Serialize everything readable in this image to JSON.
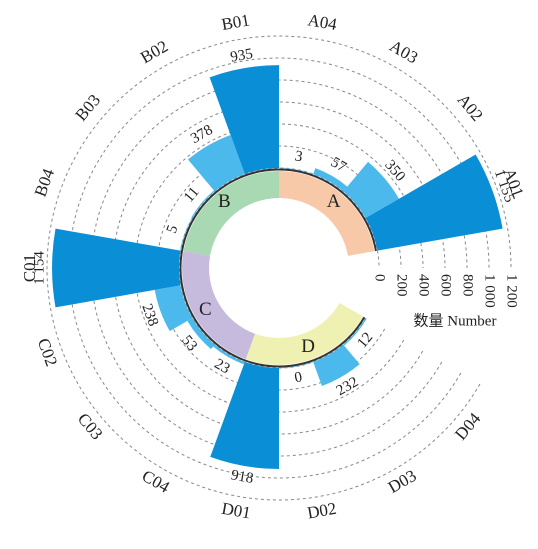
{
  "chart_data": {
    "type": "radial_bar",
    "categories": [
      "A04",
      "A03",
      "A02",
      "A01",
      "D04",
      "D03",
      "D02",
      "D01",
      "C04",
      "C03",
      "C02",
      "C01",
      "B04",
      "B03",
      "B02",
      "B01"
    ],
    "values": [
      3,
      57,
      350,
      1155,
      12,
      232,
      0,
      918,
      23,
      53,
      238,
      1154,
      5,
      11,
      378,
      935
    ],
    "value_labels": [
      "3",
      "57",
      "350",
      "1 155",
      "12",
      "232",
      "0",
      "918",
      "23",
      "53",
      "238",
      "1 154",
      "5",
      "11",
      "378",
      "935"
    ],
    "colors": [
      "#4bb9eb",
      "#4bb9eb",
      "#4bb9eb",
      "#0a8fd6",
      "#4bb9eb",
      "#4bb9eb",
      "#4bb9eb",
      "#0a8fd6",
      "#4bb9eb",
      "#4bb9eb",
      "#4bb9eb",
      "#0a8fd6",
      "#4bb9eb",
      "#4bb9eb",
      "#4bb9eb",
      "#0a8fd6"
    ],
    "groups": [
      {
        "name": "A",
        "color": "#f7c9a9"
      },
      {
        "name": "B",
        "color": "#a9d9b2"
      },
      {
        "name": "C",
        "color": "#c6badd"
      },
      {
        "name": "D",
        "color": "#eff1b3"
      }
    ],
    "ylim": [
      0,
      1200
    ],
    "yticks": [
      0,
      200,
      400,
      600,
      800,
      {
        "value": 1000,
        "label": "1 000"
      },
      {
        "value": 1200,
        "label": "1 200"
      }
    ],
    "ylabel": "数量 Number",
    "grid": true
  }
}
